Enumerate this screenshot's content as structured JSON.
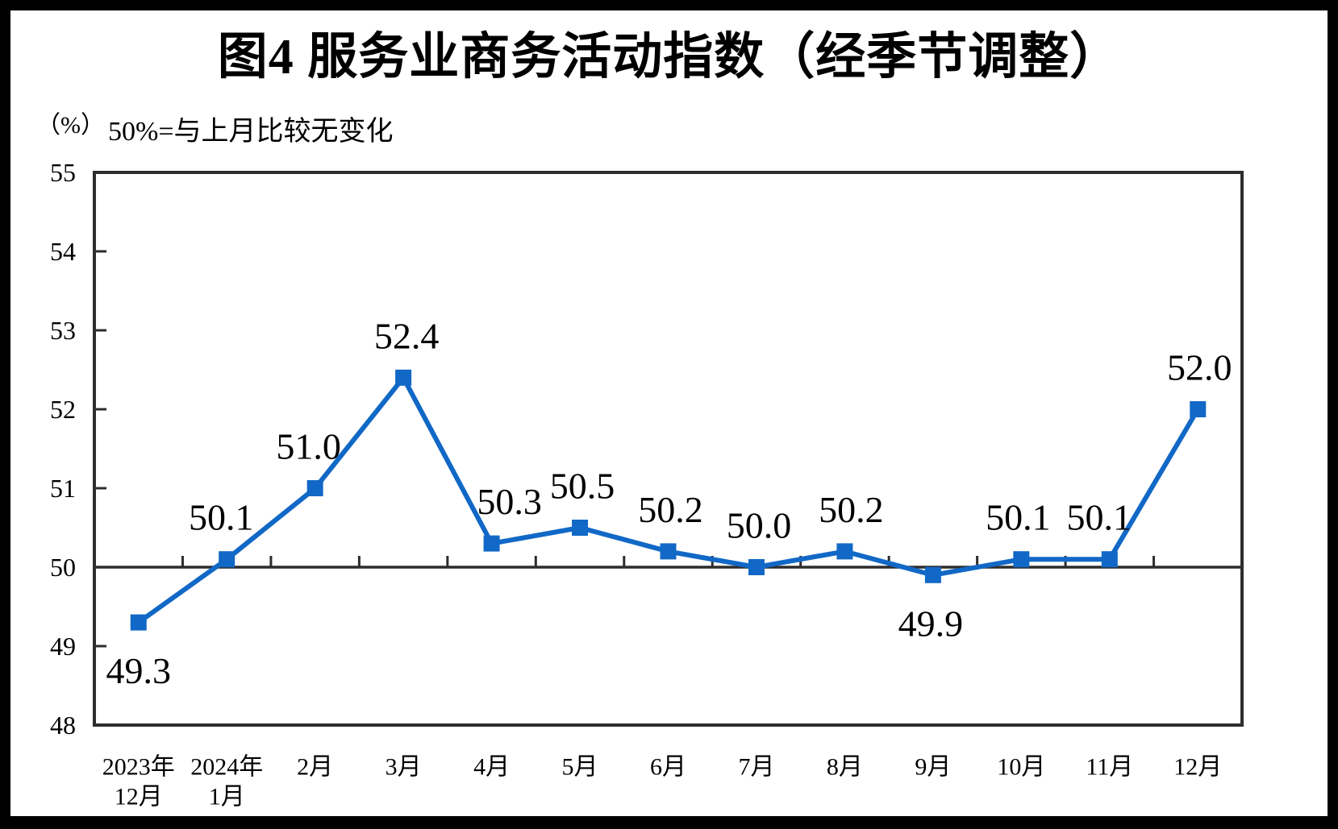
{
  "chart_data": {
    "type": "line",
    "title": "图4 服务业商务活动指数（经季节调整）",
    "unit_label": "（%）",
    "subtitle": "50%=与上月比较无变化",
    "xlabel": "",
    "ylabel": "（%）",
    "categories": [
      "2023年12月",
      "2024年1月",
      "2月",
      "3月",
      "4月",
      "5月",
      "6月",
      "7月",
      "8月",
      "9月",
      "10月",
      "11月",
      "12月"
    ],
    "category_labels": [
      {
        "line1": "2023年",
        "line2": "12月"
      },
      {
        "line1": "2024年",
        "line2": "1月"
      },
      {
        "line1": "2月"
      },
      {
        "line1": "3月"
      },
      {
        "line1": "4月"
      },
      {
        "line1": "5月"
      },
      {
        "line1": "6月"
      },
      {
        "line1": "7月"
      },
      {
        "line1": "8月"
      },
      {
        "line1": "9月"
      },
      {
        "line1": "10月"
      },
      {
        "line1": "11月"
      },
      {
        "line1": "12月"
      }
    ],
    "values": [
      49.3,
      50.1,
      51.0,
      52.4,
      50.3,
      50.5,
      50.2,
      50.0,
      50.2,
      49.9,
      50.1,
      50.1,
      52.0
    ],
    "value_labels": [
      "49.3",
      "50.1",
      "51.0",
      "52.4",
      "50.3",
      "50.5",
      "50.2",
      "50.0",
      "50.2",
      "49.9",
      "50.1",
      "50.1",
      "52.0"
    ],
    "yticks": [
      55,
      54,
      53,
      52,
      51,
      50,
      49,
      48
    ],
    "ylim": [
      48,
      55
    ],
    "reference_line": 50,
    "grid": false,
    "legend": "none",
    "marker": "square",
    "line_color": "#1168c6",
    "axis_color": "#2d2d2d",
    "text_color": "#000000",
    "label_positions": [
      "below",
      "above",
      "above",
      "above",
      "above",
      "above",
      "above",
      "above",
      "above",
      "below",
      "above",
      "above",
      "above"
    ],
    "label_dx": [
      0,
      -7,
      -8,
      4,
      22,
      3,
      3,
      3,
      8,
      -3,
      -4,
      -13,
      2
    ]
  }
}
